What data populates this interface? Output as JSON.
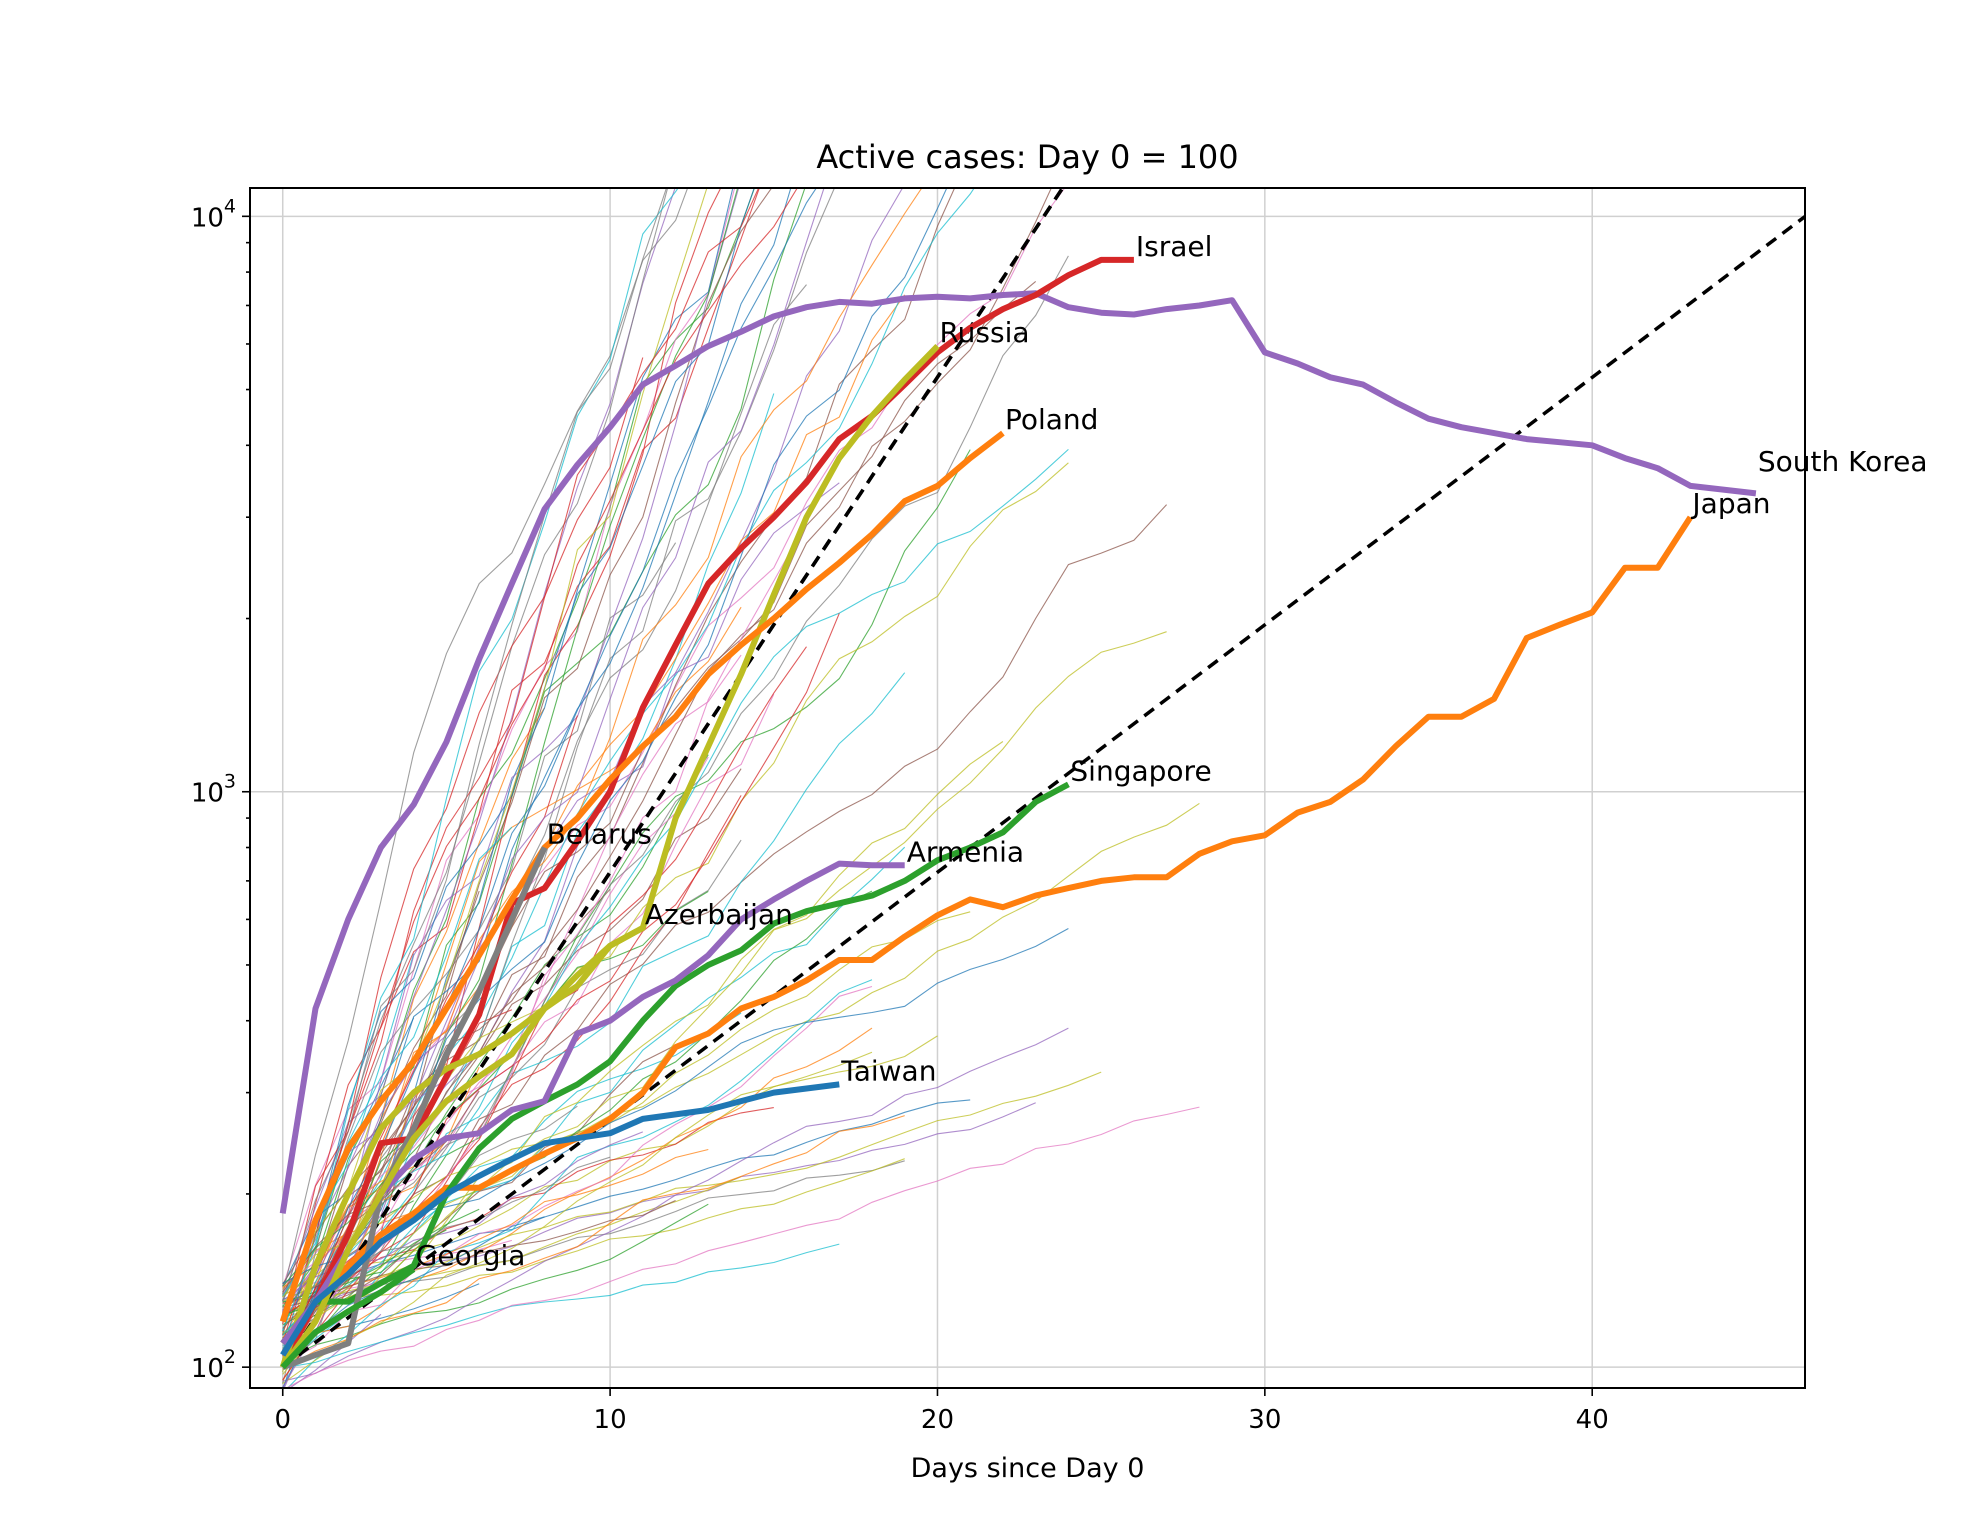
{
  "chart_data": {
    "type": "line",
    "title": "Active cases: Day 0 = 100",
    "xlabel": "Days since Day 0",
    "ylabel": "",
    "yscale": "log",
    "xlim": [
      -1,
      46.5
    ],
    "ylim": [
      92,
      11200
    ],
    "grid": true,
    "x_ticks": [
      0,
      10,
      20,
      30,
      40
    ],
    "y_ticks": [
      {
        "value": 100,
        "base": "10",
        "exp": "2"
      },
      {
        "value": 1000,
        "base": "10",
        "exp": "3"
      },
      {
        "value": 10000,
        "base": "10",
        "exp": "4"
      }
    ],
    "reference_lines": [
      {
        "doubling_days": 2,
        "style": "dashed",
        "color": "#000000"
      },
      {
        "doubling_days": 3,
        "style": "dashed",
        "color": "#000000"
      },
      {
        "doubling_days": 7,
        "style": "dashed",
        "color": "#000000"
      }
    ],
    "series": [
      {
        "name": "South Korea",
        "color": "#9467bd",
        "label_x": 45,
        "label_y": 3550,
        "x": [
          0,
          1,
          2,
          3,
          4,
          5,
          6,
          7,
          8,
          9,
          10,
          11,
          12,
          13,
          14,
          15,
          16,
          17,
          18,
          19,
          20,
          21,
          22,
          23,
          24,
          25,
          26,
          27,
          28,
          29,
          30,
          31,
          32,
          33,
          34,
          35,
          36,
          37,
          38,
          39,
          40,
          41,
          42,
          43,
          44,
          45
        ],
        "y": [
          185,
          420,
          600,
          800,
          950,
          1220,
          1700,
          2300,
          3100,
          3700,
          4300,
          5100,
          5500,
          5950,
          6300,
          6700,
          6950,
          7100,
          7050,
          7200,
          7250,
          7200,
          7300,
          7350,
          6950,
          6800,
          6750,
          6900,
          7000,
          7150,
          5800,
          5550,
          5250,
          5100,
          4750,
          4450,
          4300,
          4200,
          4100,
          4050,
          4000,
          3800,
          3650,
          3400,
          3350,
          3300
        ]
      },
      {
        "name": "Israel",
        "color": "#d62728",
        "label_x": 26,
        "label_y": 8400,
        "x": [
          0,
          1,
          2,
          3,
          4,
          5,
          6,
          7,
          8,
          9,
          10,
          11,
          12,
          13,
          14,
          15,
          16,
          17,
          18,
          19,
          20,
          21,
          22,
          23,
          24,
          25,
          26
        ],
        "y": [
          100,
          130,
          170,
          245,
          250,
          320,
          410,
          640,
          680,
          820,
          1000,
          1400,
          1800,
          2300,
          2650,
          3000,
          3450,
          4100,
          4500,
          5100,
          5800,
          6400,
          6900,
          7300,
          7900,
          8400,
          8400
        ]
      },
      {
        "name": "Russia",
        "color": "#bcbd22",
        "label_x": 20,
        "label_y": 5950,
        "x": [
          0,
          1,
          2,
          3,
          4,
          5,
          6,
          7,
          8,
          9,
          10,
          11,
          12,
          13,
          14,
          15,
          16,
          17,
          18,
          19,
          20
        ],
        "y": [
          100,
          150,
          200,
          260,
          300,
          330,
          350,
          380,
          420,
          460,
          540,
          580,
          900,
          1200,
          1600,
          2200,
          3000,
          3800,
          4500,
          5200,
          5950
        ]
      },
      {
        "name": "Poland",
        "color": "#ff7f0e",
        "label_x": 22,
        "label_y": 4200,
        "x": [
          0,
          1,
          2,
          3,
          4,
          5,
          6,
          7,
          8,
          9,
          10,
          11,
          12,
          13,
          14,
          15,
          16,
          17,
          18,
          19,
          20,
          21,
          22
        ],
        "y": [
          120,
          180,
          240,
          290,
          340,
          420,
          520,
          650,
          800,
          900,
          1050,
          1200,
          1350,
          1600,
          1800,
          2000,
          2250,
          2500,
          2800,
          3200,
          3400,
          3800,
          4200
        ]
      },
      {
        "name": "Japan",
        "color": "#ff7f0e",
        "label_x": 43,
        "label_y": 3000,
        "x": [
          0,
          1,
          2,
          3,
          4,
          5,
          6,
          7,
          8,
          9,
          10,
          11,
          12,
          13,
          14,
          15,
          16,
          17,
          18,
          19,
          20,
          21,
          22,
          23,
          24,
          25,
          26,
          27,
          28,
          29,
          30,
          31,
          32,
          33,
          34,
          35,
          36,
          37,
          38,
          39,
          40,
          41,
          42,
          43
        ],
        "y": [
          110,
          130,
          150,
          170,
          185,
          205,
          205,
          220,
          235,
          250,
          270,
          300,
          360,
          380,
          420,
          440,
          470,
          510,
          510,
          560,
          610,
          650,
          630,
          660,
          680,
          700,
          710,
          710,
          780,
          820,
          840,
          920,
          960,
          1050,
          1200,
          1350,
          1350,
          1450,
          1850,
          1950,
          2050,
          2450,
          2450,
          3000
        ]
      },
      {
        "name": "Singapore",
        "color": "#2ca02c",
        "label_x": 24,
        "label_y": 1030,
        "x": [
          0,
          1,
          2,
          3,
          4,
          5,
          6,
          7,
          8,
          9,
          10,
          11,
          12,
          13,
          14,
          15,
          16,
          17,
          18,
          19,
          20,
          21,
          22,
          23,
          24
        ],
        "y": [
          110,
          130,
          130,
          140,
          150,
          200,
          240,
          270,
          290,
          310,
          340,
          400,
          460,
          500,
          530,
          590,
          620,
          640,
          660,
          700,
          760,
          800,
          850,
          960,
          1030
        ]
      },
      {
        "name": "Armenia",
        "color": "#9467bd",
        "label_x": 19,
        "label_y": 745,
        "x": [
          0,
          1,
          2,
          3,
          4,
          5,
          6,
          7,
          8,
          9,
          10,
          11,
          12,
          13,
          14,
          15,
          16,
          17,
          18,
          19
        ],
        "y": [
          110,
          130,
          160,
          200,
          230,
          250,
          255,
          280,
          290,
          380,
          400,
          440,
          470,
          520,
          600,
          650,
          700,
          750,
          745,
          745
        ]
      },
      {
        "name": "Belarus",
        "color": "#7f7f7f",
        "label_x": 8,
        "label_y": 800,
        "x": [
          0,
          1,
          2,
          3,
          4,
          5,
          6,
          7,
          8
        ],
        "y": [
          100,
          105,
          110,
          200,
          260,
          350,
          450,
          600,
          800
        ]
      },
      {
        "name": "Azerbaijan",
        "color": "#bcbd22",
        "label_x": 11,
        "label_y": 580,
        "x": [
          0,
          1,
          2,
          3,
          4,
          5,
          6,
          7,
          8,
          9,
          10,
          11
        ],
        "y": [
          100,
          120,
          160,
          200,
          250,
          290,
          320,
          350,
          420,
          480,
          540,
          580
        ]
      },
      {
        "name": "Taiwan",
        "color": "#1f77b4",
        "label_x": 17,
        "label_y": 310,
        "x": [
          0,
          1,
          2,
          3,
          4,
          5,
          6,
          7,
          8,
          9,
          10,
          11,
          12,
          13,
          14,
          15,
          16,
          17
        ],
        "y": [
          105,
          130,
          145,
          165,
          180,
          200,
          215,
          230,
          245,
          250,
          255,
          270,
          275,
          280,
          290,
          300,
          305,
          310
        ]
      },
      {
        "name": "Georgia",
        "color": "#2ca02c",
        "label_x": 4,
        "label_y": 148,
        "x": [
          0,
          1,
          2,
          3,
          4
        ],
        "y": [
          100,
          115,
          125,
          135,
          148
        ]
      }
    ]
  }
}
